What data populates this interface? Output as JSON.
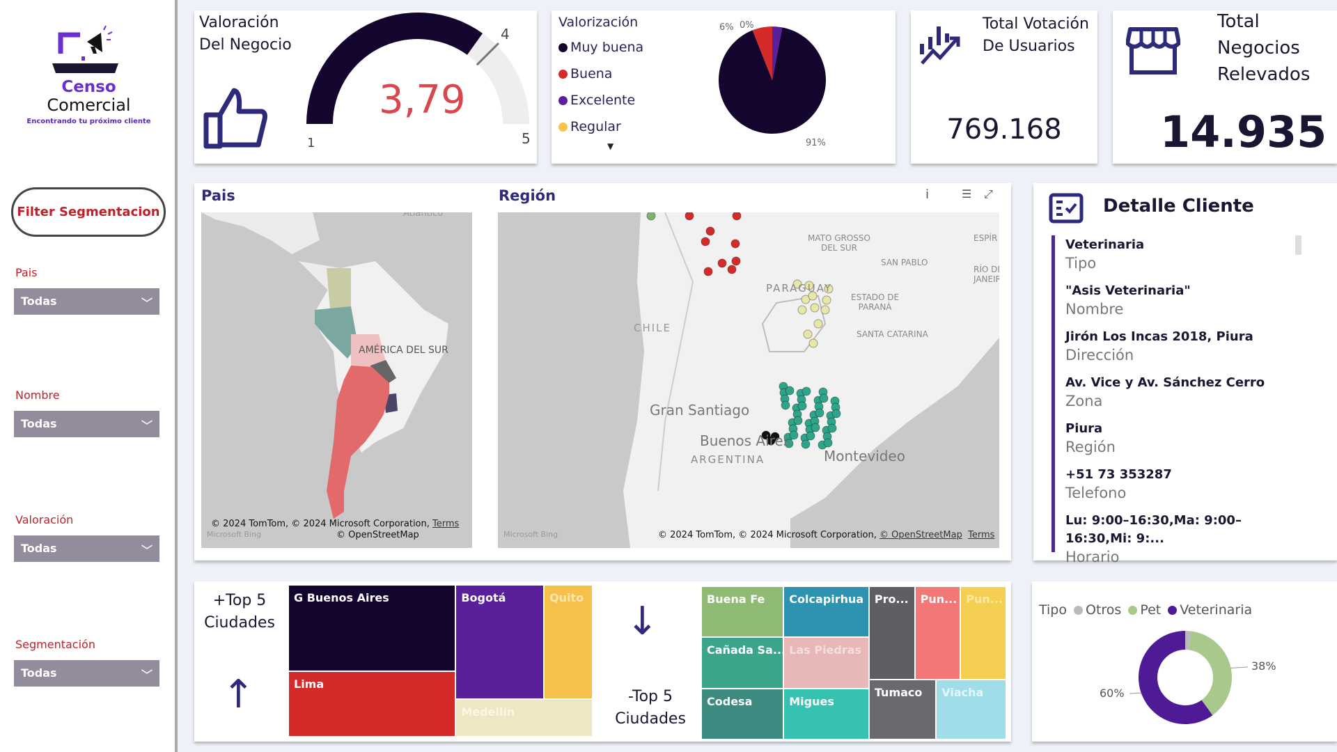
{
  "logo": {
    "line1": "Censo",
    "line2": "Comercial",
    "tagline": "Encontrando tu próximo cliente"
  },
  "sidebar": {
    "filter_button": "Filter Segmentacion",
    "slicers": [
      {
        "label": "Pais",
        "value": "Todas"
      },
      {
        "label": "Nombre",
        "value": "Todas"
      },
      {
        "label": "Valoración",
        "value": "Todas"
      },
      {
        "label": "Segmentación",
        "value": "Todas"
      }
    ]
  },
  "gauge": {
    "title_line1": "Valoración",
    "title_line2": "Del Negocio",
    "value": 3.79,
    "value_label": "3,79",
    "min": 1,
    "max": 5,
    "target": 4,
    "min_label": "1",
    "max_label": "5",
    "target_label": "4",
    "fill_color": "#14052e",
    "value_color": "#d9474e"
  },
  "valorizacion": {
    "title": "Valorización",
    "legend": [
      {
        "label": "Muy buena",
        "color": "#14052e"
      },
      {
        "label": "Buena",
        "color": "#d42a2a"
      },
      {
        "label": "Excelente",
        "color": "#5a1f9a"
      },
      {
        "label": "Regular",
        "color": "#f5c44a"
      }
    ],
    "slices": [
      {
        "label": "Muy buena",
        "value": 91
      },
      {
        "label": "Buena",
        "value": 6
      },
      {
        "label": "Excelente",
        "value": 3
      },
      {
        "label": "Regular",
        "value": 0
      }
    ],
    "data_labels": [
      "6%",
      "0%",
      "91%"
    ]
  },
  "kpi_votos": {
    "title_line1": "Total Votación",
    "title_line2": "De Usuarios",
    "value": "769.168"
  },
  "kpi_negocios": {
    "title_line1": "Total",
    "title_line2": "Negocios",
    "title_line3": "Relevados",
    "value": "14.935"
  },
  "map_pais": {
    "title": "Pais",
    "label": "AMÉRICA DEL SUR",
    "top_label": "Atlántico",
    "attribution": "© 2024 TomTom, © 2024 Microsoft Corporation,",
    "terms": "Terms",
    "osm": "© OpenStreetMap",
    "bing": "Microsoft Bing"
  },
  "map_region": {
    "title": "Región",
    "labels": {
      "mato": "MATO GROSSO",
      "mato2": "DEL SUR",
      "sanpablo": "SAN PABLO",
      "rio": "RÍO DE",
      "rio2": "JANEIRO",
      "espir": "ESPÍR",
      "paraguay": "PARAGUAY",
      "estado": "ESTADO DE",
      "estado2": "PARANÁ",
      "santa": "SANTA CATARINA",
      "chile": "CHILE",
      "santiago": "Gran Santiago",
      "ba": "Buenos Aires",
      "argentina": "ARGENTINA",
      "montevideo": "Montevideo"
    },
    "attribution": "© 2024 TomTom, © 2024 Microsoft Corporation,",
    "osm": "© OpenStreetMap",
    "terms": "Terms",
    "bing": "Microsoft Bing"
  },
  "detalle": {
    "title": "Detalle Cliente",
    "fields": [
      {
        "value": "Veterinaria",
        "label": "Tipo"
      },
      {
        "value": "\"Asis Veterinaria\"",
        "label": "Nombre"
      },
      {
        "value": "Jirón Los Incas 2018, Piura",
        "label": "Dirección"
      },
      {
        "value": "Av. Vice y Av. Sánchez Cerro",
        "label": "Zona"
      },
      {
        "value": "Piura",
        "label": "Región"
      },
      {
        "value": "+51 73 353287",
        "label": "Telefono"
      },
      {
        "value": "Lu: 9:00–16:30,Ma: 9:00–16:30,Mi: 9:...",
        "label": "Horario"
      }
    ]
  },
  "top5": {
    "title_line1": "+Top 5",
    "title_line2": "Ciudades",
    "cells": [
      {
        "label": "G Buenos Aires",
        "color": "#14052e"
      },
      {
        "label": "Lima",
        "color": "#d42a2a"
      },
      {
        "label": "Bogotá",
        "color": "#5a1f9a"
      },
      {
        "label": "Quito",
        "color": "#f7c04a"
      },
      {
        "label": "Medellín",
        "color": "#efe6c4"
      }
    ]
  },
  "bottom5": {
    "title_line1": "-Top 5",
    "title_line2": "Ciudades",
    "cells": [
      {
        "label": "Buena Fe",
        "color": "#8fba74"
      },
      {
        "label": "Cañada Sa...",
        "color": "#3aa58a"
      },
      {
        "label": "Codesa",
        "color": "#3d8a80"
      },
      {
        "label": "Colcapirhua",
        "color": "#2e93b0"
      },
      {
        "label": "Las Piedras",
        "color": "#e8b7b7"
      },
      {
        "label": "Migues",
        "color": "#35c2b0"
      },
      {
        "label": "Pro...",
        "color": "#5f5f63"
      },
      {
        "label": "Pun...",
        "color": "#f27878"
      },
      {
        "label": "Pun...",
        "color": "#f4cf52"
      },
      {
        "label": "Tumaco",
        "color": "#6a6a6e"
      },
      {
        "label": "Viacha",
        "color": "#9fdde8"
      }
    ]
  },
  "tipo": {
    "legend_title": "Tipo",
    "legend": [
      {
        "label": "Otros",
        "color": "#b9b9bf"
      },
      {
        "label": "Pet",
        "color": "#a9c98c"
      },
      {
        "label": "Veterinaria",
        "color": "#4f1a96"
      }
    ],
    "slices": [
      {
        "label": "Otros",
        "value": 2
      },
      {
        "label": "Pet",
        "value": 38
      },
      {
        "label": "Veterinaria",
        "value": 60
      }
    ],
    "data_labels": {
      "Pet": "38%",
      "Veterinaria": "60%"
    }
  }
}
